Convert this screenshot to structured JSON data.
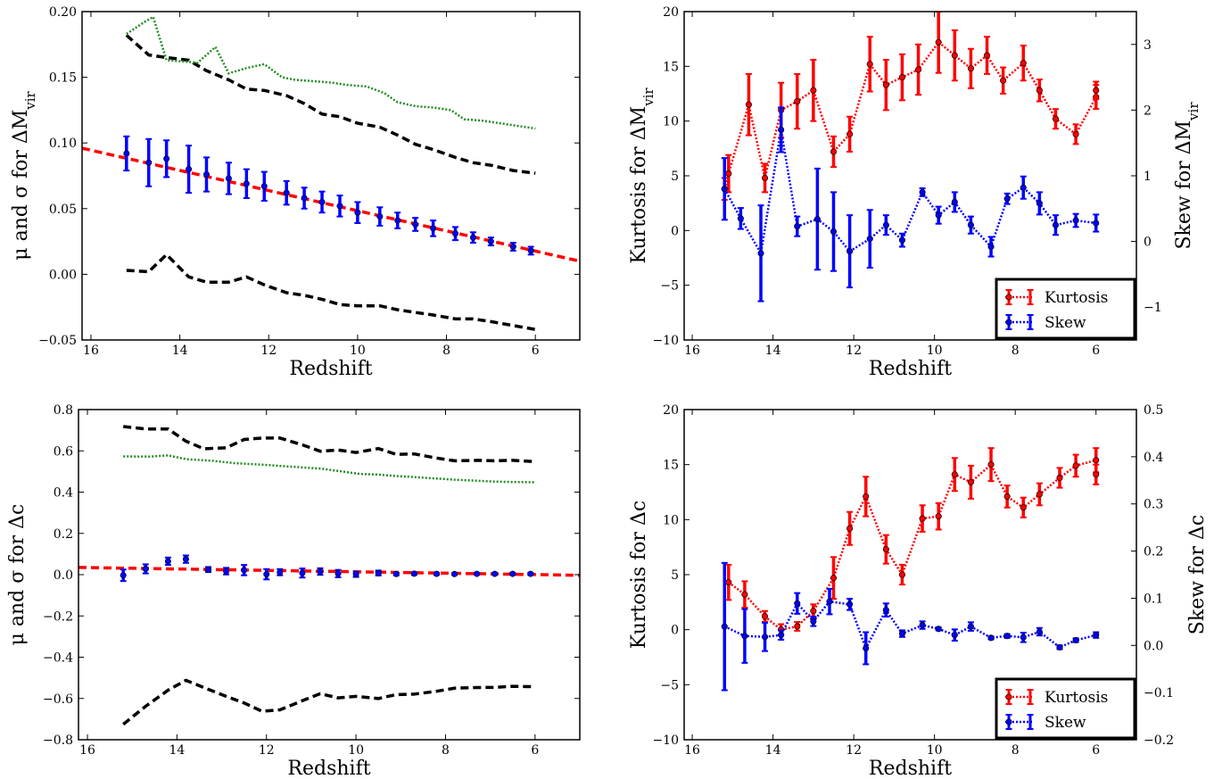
{
  "chart_data": [
    {
      "id": "mvir-mean",
      "type": "line",
      "xlabel": "Redshift",
      "ylabel": "μ and σ for ΔM_vir",
      "xlim": [
        16.2,
        5
      ],
      "ylim": [
        -0.05,
        0.2
      ],
      "xticks": [
        16,
        14,
        12,
        10,
        8,
        6
      ],
      "yticks": [
        -0.05,
        0.0,
        0.05,
        0.1,
        0.15,
        0.2
      ],
      "ytick_labels": [
        "−0.05",
        "0.00",
        "0.05",
        "0.10",
        "0.15",
        "0.20"
      ],
      "points": {
        "x": [
          15.2,
          14.7,
          14.3,
          13.8,
          13.4,
          12.9,
          12.5,
          12.1,
          11.6,
          11.2,
          10.8,
          10.4,
          10.0,
          9.5,
          9.1,
          8.7,
          8.3,
          7.8,
          7.4,
          7.0,
          6.5,
          6.1
        ],
        "y": [
          0.092,
          0.085,
          0.088,
          0.08,
          0.076,
          0.073,
          0.069,
          0.067,
          0.062,
          0.058,
          0.055,
          0.052,
          0.047,
          0.044,
          0.041,
          0.038,
          0.035,
          0.031,
          0.028,
          0.025,
          0.021,
          0.018
        ],
        "err": [
          0.013,
          0.018,
          0.014,
          0.018,
          0.013,
          0.012,
          0.011,
          0.011,
          0.009,
          0.008,
          0.008,
          0.008,
          0.008,
          0.007,
          0.006,
          0.005,
          0.006,
          0.005,
          0.004,
          0.003,
          0.003,
          0.003
        ],
        "color": "#0000ff"
      },
      "fit": {
        "x": [
          16.2,
          5.0
        ],
        "y": [
          0.096,
          0.01
        ],
        "color": "#ff0000"
      },
      "sigma_upper": {
        "x": [
          15.2,
          14.7,
          14.3,
          13.8,
          13.4,
          12.9,
          12.5,
          12.1,
          11.6,
          11.2,
          10.8,
          10.4,
          10.0,
          9.5,
          9.1,
          8.7,
          8.3,
          7.8,
          7.4,
          7.0,
          6.5,
          6.0
        ],
        "y": [
          0.182,
          0.167,
          0.165,
          0.163,
          0.155,
          0.148,
          0.141,
          0.14,
          0.136,
          0.13,
          0.122,
          0.12,
          0.115,
          0.112,
          0.106,
          0.099,
          0.095,
          0.089,
          0.085,
          0.083,
          0.079,
          0.077
        ],
        "color": "#000000"
      },
      "sigma_lower": {
        "x": [
          15.2,
          14.7,
          14.3,
          13.8,
          13.4,
          12.9,
          12.5,
          12.1,
          11.6,
          11.2,
          10.8,
          10.4,
          10.0,
          9.5,
          9.1,
          8.7,
          8.3,
          7.8,
          7.4,
          7.0,
          6.5,
          6.0
        ],
        "y": [
          0.003,
          0.002,
          0.015,
          -0.002,
          -0.006,
          -0.006,
          -0.002,
          -0.008,
          -0.014,
          -0.016,
          -0.019,
          -0.023,
          -0.024,
          -0.024,
          -0.027,
          -0.029,
          -0.031,
          -0.034,
          -0.034,
          -0.036,
          -0.039,
          -0.042
        ],
        "color": "#000000"
      },
      "sigma": {
        "x": [
          15.2,
          14.8,
          14.6,
          14.3,
          13.9,
          13.6,
          13.2,
          12.9,
          12.5,
          12.1,
          11.7,
          11.4,
          11.0,
          10.6,
          10.2,
          9.8,
          9.4,
          9.1,
          8.7,
          8.3,
          7.9,
          7.6,
          7.2,
          6.8,
          6.4,
          6.0
        ],
        "y": [
          0.183,
          0.192,
          0.196,
          0.163,
          0.162,
          0.161,
          0.173,
          0.153,
          0.157,
          0.16,
          0.15,
          0.148,
          0.147,
          0.146,
          0.144,
          0.143,
          0.138,
          0.131,
          0.128,
          0.127,
          0.125,
          0.118,
          0.117,
          0.115,
          0.113,
          0.111
        ],
        "color": "#228b22"
      }
    },
    {
      "id": "mvir-moments",
      "type": "line",
      "xlabel": "Redshift",
      "ylabel": "Kurtosis for ΔM_vir",
      "ylabel_right": "Skew for ΔM_vir",
      "xlim": [
        16.2,
        5
      ],
      "ylim": [
        -10,
        20
      ],
      "ylim_right": [
        -1.5,
        3.5
      ],
      "xticks": [
        16,
        14,
        12,
        10,
        8,
        6
      ],
      "yticks": [
        -10,
        -5,
        0,
        5,
        10,
        15,
        20
      ],
      "ytick_labels": [
        "−10",
        "−5",
        "0",
        "5",
        "10",
        "15",
        "20"
      ],
      "yticks_right": [
        -1,
        0,
        1,
        2,
        3
      ],
      "ytick_labels_right": [
        "−1",
        "0",
        "1",
        "2",
        "3"
      ],
      "legend": {
        "placement": "lower-right",
        "entries": [
          "Kurtosis",
          "Skew"
        ]
      },
      "kurtosis": {
        "x": [
          15.2,
          15.1,
          14.6,
          14.2,
          13.8,
          13.4,
          13.0,
          12.5,
          12.1,
          11.6,
          11.2,
          10.8,
          10.4,
          9.9,
          9.5,
          9.1,
          8.7,
          8.3,
          7.8,
          7.4,
          7.0,
          6.5,
          6.0,
          6.0
        ],
        "y": [
          3.8,
          5.2,
          11.5,
          4.8,
          11.0,
          11.8,
          12.8,
          7.2,
          8.8,
          15.2,
          13.3,
          14.0,
          14.7,
          17.2,
          16.0,
          14.8,
          16.0,
          13.7,
          15.3,
          12.8,
          10.2,
          8.8,
          12.2,
          12.8
        ],
        "err": [
          1.0,
          1.7,
          2.8,
          1.3,
          2.5,
          2.5,
          2.8,
          1.4,
          1.6,
          2.5,
          2.3,
          2.1,
          2.3,
          2.8,
          2.3,
          1.8,
          1.7,
          1.2,
          1.6,
          1.0,
          0.9,
          0.9,
          1.1,
          0.8
        ],
        "color": "#ff0000"
      },
      "skew": {
        "x": [
          15.2,
          14.8,
          14.3,
          13.8,
          13.4,
          12.9,
          12.5,
          12.1,
          11.6,
          11.2,
          10.8,
          10.3,
          9.9,
          9.5,
          9.1,
          8.6,
          8.2,
          7.8,
          7.4,
          7.0,
          6.5,
          6.0
        ],
        "y": [
          0.8,
          0.35,
          -0.18,
          1.7,
          0.23,
          0.34,
          0.15,
          -0.15,
          0.04,
          0.25,
          0.02,
          0.75,
          0.4,
          0.6,
          0.25,
          -0.08,
          0.65,
          0.82,
          0.58,
          0.25,
          0.32,
          0.28
        ],
        "err": [
          0.47,
          0.16,
          0.73,
          0.34,
          0.15,
          0.77,
          0.6,
          0.55,
          0.44,
          0.15,
          0.1,
          0.06,
          0.13,
          0.15,
          0.13,
          0.15,
          0.08,
          0.17,
          0.17,
          0.15,
          0.1,
          0.13
        ],
        "color": "#0000ff"
      }
    },
    {
      "id": "c-mean",
      "type": "line",
      "xlabel": "Redshift",
      "ylabel": "μ and σ for Δc",
      "xlim": [
        16.2,
        5
      ],
      "ylim": [
        -0.8,
        0.8
      ],
      "xticks": [
        16,
        14,
        12,
        10,
        8,
        6
      ],
      "yticks": [
        -0.8,
        -0.6,
        -0.4,
        -0.2,
        0.0,
        0.2,
        0.4,
        0.6,
        0.8
      ],
      "ytick_labels": [
        "−0.8",
        "−0.6",
        "−0.4",
        "−0.2",
        "0.0",
        "0.2",
        "0.4",
        "0.6",
        "0.8"
      ],
      "points": {
        "x": [
          15.2,
          14.7,
          14.2,
          13.8,
          13.3,
          12.9,
          12.5,
          12.0,
          11.7,
          11.2,
          10.8,
          10.4,
          10.0,
          9.5,
          9.1,
          8.7,
          8.2,
          7.8,
          7.3,
          6.9,
          6.5,
          6.1
        ],
        "y": [
          -0.003,
          0.028,
          0.065,
          0.075,
          0.025,
          0.017,
          0.022,
          0.002,
          0.012,
          0.008,
          0.015,
          0.005,
          0.002,
          0.008,
          0.003,
          0.005,
          0.004,
          0.003,
          0.004,
          0.004,
          0.004,
          0.004
        ],
        "err": [
          0.028,
          0.022,
          0.018,
          0.018,
          0.012,
          0.016,
          0.025,
          0.025,
          0.015,
          0.022,
          0.016,
          0.018,
          0.013,
          0.012,
          0.006,
          0.006,
          0.005,
          0.004,
          0.004,
          0.004,
          0.004,
          0.004
        ],
        "color": "#0000ff"
      },
      "fit": {
        "x": [
          16.2,
          5.0
        ],
        "y": [
          0.035,
          -0.003
        ],
        "color": "#ff0000"
      },
      "sigma_upper": {
        "x": [
          15.2,
          14.7,
          14.2,
          13.8,
          13.4,
          12.9,
          12.5,
          12.1,
          11.7,
          11.2,
          10.8,
          10.4,
          10.0,
          9.5,
          9.1,
          8.7,
          8.2,
          7.8,
          7.3,
          6.9,
          6.5,
          6.0
        ],
        "y": [
          0.718,
          0.706,
          0.706,
          0.647,
          0.61,
          0.615,
          0.655,
          0.662,
          0.662,
          0.629,
          0.598,
          0.604,
          0.592,
          0.611,
          0.583,
          0.585,
          0.565,
          0.552,
          0.554,
          0.552,
          0.554,
          0.548
        ],
        "color": "#000000"
      },
      "sigma_lower": {
        "x": [
          15.2,
          14.7,
          14.2,
          13.8,
          13.4,
          12.9,
          12.5,
          12.1,
          11.7,
          11.2,
          10.8,
          10.4,
          10.0,
          9.5,
          9.1,
          8.7,
          8.2,
          7.8,
          7.3,
          6.9,
          6.5,
          6.0
        ],
        "y": [
          -0.725,
          -0.638,
          -0.56,
          -0.512,
          -0.547,
          -0.59,
          -0.622,
          -0.662,
          -0.655,
          -0.611,
          -0.577,
          -0.597,
          -0.59,
          -0.6,
          -0.581,
          -0.579,
          -0.565,
          -0.55,
          -0.547,
          -0.546,
          -0.541,
          -0.543
        ],
        "color": "#000000"
      },
      "sigma": {
        "x": [
          15.2,
          14.6,
          14.2,
          13.8,
          13.2,
          12.7,
          12.1,
          11.7,
          11.2,
          10.8,
          10.3,
          9.9,
          9.5,
          9.1,
          8.7,
          8.3,
          7.8,
          7.4,
          6.9,
          6.5,
          6.0
        ],
        "y": [
          0.573,
          0.572,
          0.578,
          0.56,
          0.552,
          0.54,
          0.533,
          0.527,
          0.52,
          0.514,
          0.5,
          0.488,
          0.485,
          0.478,
          0.473,
          0.467,
          0.46,
          0.456,
          0.451,
          0.449,
          0.448
        ],
        "color": "#228b22"
      }
    },
    {
      "id": "c-moments",
      "type": "line",
      "xlabel": "Redshift",
      "ylabel": "Kurtosis for Δc",
      "ylabel_right": "Skew for Δc",
      "xlim": [
        16.2,
        5
      ],
      "ylim": [
        -10,
        20
      ],
      "ylim_right": [
        -0.2,
        0.5
      ],
      "xticks": [
        16,
        14,
        12,
        10,
        8,
        6
      ],
      "yticks": [
        -10,
        -5,
        0,
        5,
        10,
        15,
        20
      ],
      "ytick_labels": [
        "−10",
        "−5",
        "0",
        "5",
        "10",
        "15",
        "20"
      ],
      "yticks_right": [
        -0.2,
        -0.1,
        0.0,
        0.1,
        0.2,
        0.3,
        0.4,
        0.5
      ],
      "ytick_labels_right": [
        "−0.2",
        "−0.1",
        "0.0",
        "0.1",
        "0.2",
        "0.3",
        "0.4",
        "0.5"
      ],
      "legend": {
        "placement": "lower-right",
        "entries": [
          "Kurtosis",
          "Skew"
        ]
      },
      "kurtosis": {
        "x": [
          15.1,
          14.7,
          14.2,
          13.8,
          13.4,
          13.0,
          12.5,
          12.1,
          11.7,
          11.2,
          10.8,
          10.3,
          9.9,
          9.5,
          9.1,
          8.6,
          8.2,
          7.8,
          7.4,
          6.9,
          6.5,
          6.0,
          6.0
        ],
        "y": [
          4.3,
          3.2,
          1.2,
          0.0,
          0.3,
          1.7,
          4.7,
          9.2,
          12.1,
          7.3,
          5.0,
          10.1,
          10.3,
          14.1,
          13.4,
          15.0,
          12.1,
          11.1,
          12.3,
          13.8,
          14.9,
          15.4,
          14.1
        ],
        "err": [
          1.6,
          1.2,
          0.5,
          0.5,
          0.4,
          0.6,
          1.9,
          1.5,
          1.8,
          1.3,
          0.9,
          1.2,
          1.2,
          1.5,
          1.5,
          1.5,
          1.0,
          0.9,
          1.0,
          0.9,
          1.0,
          1.1,
          0.9
        ],
        "color": "#ff0000"
      },
      "skew": {
        "x": [
          15.2,
          14.7,
          14.2,
          13.8,
          13.4,
          13.0,
          12.6,
          12.1,
          11.7,
          11.2,
          10.8,
          10.3,
          9.9,
          9.5,
          9.1,
          8.6,
          8.2,
          7.8,
          7.4,
          6.9,
          6.5,
          6.0
        ],
        "y": [
          0.04,
          0.02,
          0.018,
          0.022,
          0.089,
          0.051,
          0.093,
          0.087,
          -0.006,
          0.075,
          0.025,
          0.043,
          0.035,
          0.022,
          0.04,
          0.016,
          0.02,
          0.017,
          0.029,
          -0.004,
          0.011,
          0.022
        ],
        "err": [
          0.135,
          0.057,
          0.03,
          0.01,
          0.022,
          0.01,
          0.027,
          0.012,
          0.034,
          0.014,
          0.007,
          0.008,
          0.003,
          0.012,
          0.009,
          0.003,
          0.004,
          0.01,
          0.008,
          0.004,
          0.004,
          0.006
        ],
        "color": "#0000ff"
      }
    }
  ]
}
